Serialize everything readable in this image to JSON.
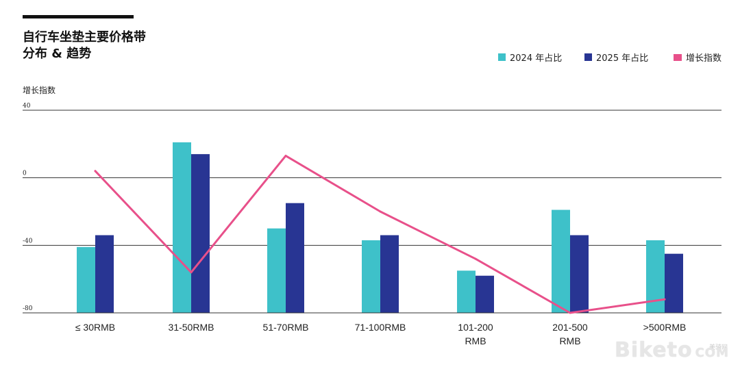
{
  "title_line1": "自行车坐垫主要价格带",
  "title_line2": "分布 & 趋势",
  "legend": [
    {
      "label": "2024 年占比",
      "color": "#3ec1c9",
      "kind": "box"
    },
    {
      "label": "2025 年占比",
      "color": "#283593",
      "kind": "box"
    },
    {
      "label": "增长指数",
      "color": "#e8508a",
      "kind": "line"
    }
  ],
  "watermark": {
    "brand": "Biketo",
    "domain": "COM",
    "cn": "美骑网"
  },
  "chart_data": {
    "type": "bar",
    "title": "自行车坐垫主要价格带 分布 & 趋势",
    "ylabel": "增长指数",
    "xlabel": "",
    "ylim": [
      -80,
      40
    ],
    "yticks": [
      40,
      0,
      -40,
      -80
    ],
    "ytick_labels": [
      "40",
      "0",
      "-40",
      "-80"
    ],
    "categories": [
      [
        "≤ 30RMB"
      ],
      [
        "31-50RMB"
      ],
      [
        "51-70RMB"
      ],
      [
        "71-100RMB"
      ],
      [
        "101-200",
        "RMB"
      ],
      [
        "201-500",
        "RMB"
      ],
      [
        ">500RMB"
      ]
    ],
    "series": [
      {
        "name": "2024 年占比",
        "kind": "bar",
        "color": "#3ec1c9",
        "values": [
          -41,
          21,
          -30,
          -37,
          -55,
          -19,
          -37
        ]
      },
      {
        "name": "2025 年占比",
        "kind": "bar",
        "color": "#283593",
        "values": [
          -34,
          14,
          -15,
          -34,
          -58,
          -34,
          -45
        ]
      },
      {
        "name": "增长指数",
        "kind": "line",
        "color": "#e8508a",
        "values": [
          4,
          -56,
          13,
          -20,
          -48,
          -80,
          -72
        ]
      }
    ]
  }
}
